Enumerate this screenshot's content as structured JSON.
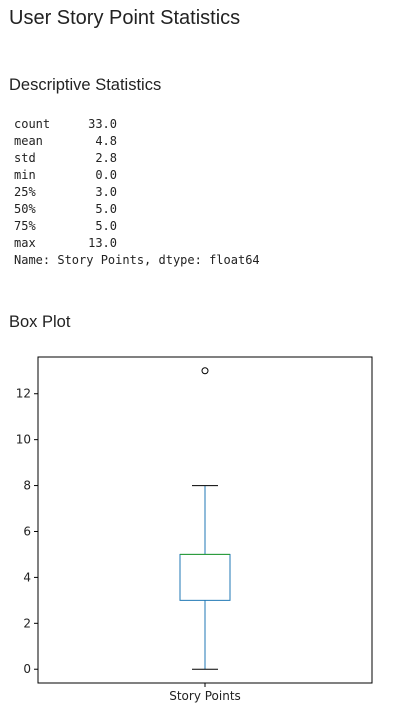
{
  "page": {
    "title": "User Story Point Statistics"
  },
  "descriptive": {
    "heading": "Descriptive Statistics",
    "rows": [
      {
        "key": "count",
        "value": "33.0"
      },
      {
        "key": "mean",
        "value": "4.8"
      },
      {
        "key": "std",
        "value": "2.8"
      },
      {
        "key": "min",
        "value": "0.0"
      },
      {
        "key": "25%",
        "value": "3.0"
      },
      {
        "key": "50%",
        "value": "5.0"
      },
      {
        "key": "75%",
        "value": "5.0"
      },
      {
        "key": "max",
        "value": "13.0"
      }
    ],
    "footer": "Name: Story Points, dtype: float64"
  },
  "boxplot": {
    "heading": "Box Plot"
  },
  "chart_data": {
    "type": "box",
    "title": "",
    "xlabel": "",
    "ylabel": "",
    "categories": [
      "Story Points"
    ],
    "box": {
      "whisker_low": 0,
      "q1": 3,
      "median": 5,
      "q3": 5,
      "whisker_high": 8,
      "outliers": [
        13
      ]
    },
    "ylim": [
      -0.6,
      13.6
    ],
    "yticks": [
      0,
      2,
      4,
      6,
      8,
      10,
      12
    ],
    "grid": false,
    "legend": "none",
    "colors": {
      "box": "#1f77b4",
      "median": "#2ca02c",
      "whisker": "#1f77b4",
      "cap": "#000000",
      "outlier": "#000000",
      "frame": "#000000"
    }
  }
}
